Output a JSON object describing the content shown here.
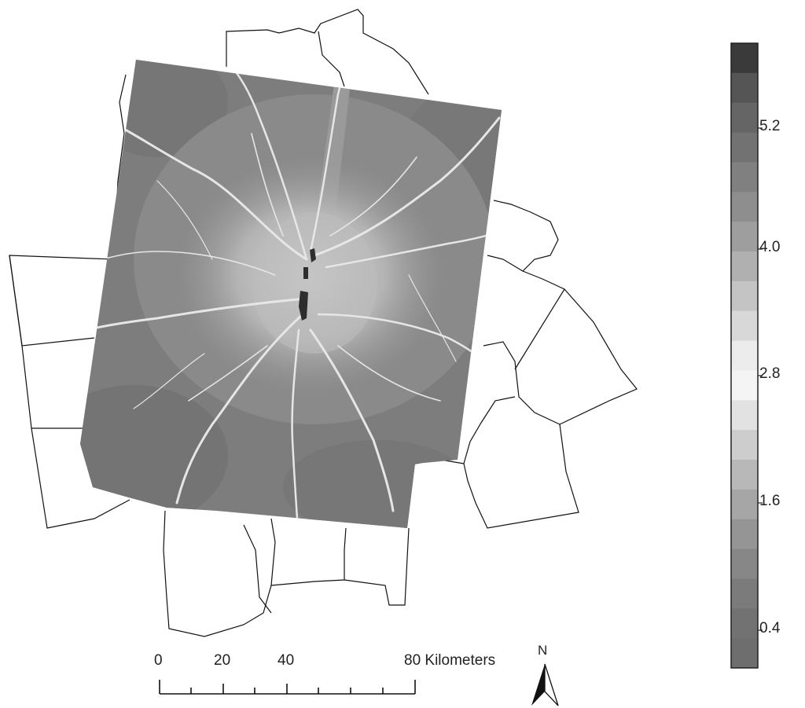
{
  "legend": {
    "labels": [
      "5.2",
      "4.0",
      "2.8",
      "1.6",
      "0.4"
    ],
    "steps": [
      "#3a3a3a",
      "#555555",
      "#656565",
      "#727272",
      "#808080",
      "#8e8e8e",
      "#9e9e9e",
      "#b0b0b0",
      "#c4c4c4",
      "#d8d8d8",
      "#ececec",
      "#f4f4f4",
      "#e2e2e2",
      "#cdcdcd",
      "#b8b8b8",
      "#a6a6a6",
      "#959595",
      "#878787",
      "#7b7b7b",
      "#727272",
      "#6e6e6e"
    ]
  },
  "scale_bar": {
    "ticks": [
      "0",
      "20",
      "40",
      "80 Kilometers"
    ]
  },
  "north_arrow": {
    "label": "N"
  },
  "colors": {
    "raster_base": "#7d7d7d",
    "roads": "#e8e8e8",
    "urban_core": "#2e2e2e",
    "boundary": "#111111"
  }
}
